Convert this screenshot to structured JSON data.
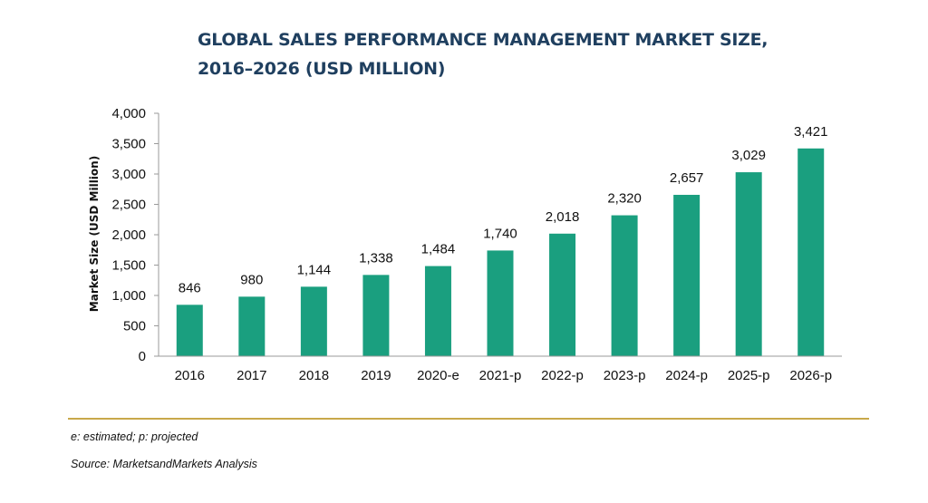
{
  "chart_data": {
    "type": "bar",
    "title_line1": "GLOBAL SALES PERFORMANCE MANAGEMENT MARKET SIZE,",
    "title_line2": "2016–2026 (USD MILLION)",
    "ylabel": "Market Size  (USD Million)",
    "xlabel": "",
    "categories": [
      "2016",
      "2017",
      "2018",
      "2019",
      "2020-e",
      "2021-p",
      "2022-p",
      "2023-p",
      "2024-p",
      "2025-p",
      "2026-p"
    ],
    "values": [
      846,
      980,
      1144,
      1338,
      1484,
      1740,
      2018,
      2320,
      2657,
      3029,
      3421
    ],
    "value_labels": [
      "846",
      "980",
      "1,144",
      "1,338",
      "1,484",
      "1,740",
      "2,018",
      "2,320",
      "2,657",
      "3,029",
      "3,421"
    ],
    "ylim": [
      0,
      4000
    ],
    "yticks": [
      0,
      500,
      1000,
      1500,
      2000,
      2500,
      3000,
      3500,
      4000
    ],
    "ytick_labels": [
      "0",
      "500",
      "1,000",
      "1,500",
      "2,000",
      "2,500",
      "3,000",
      "3,500",
      "4,000"
    ],
    "grid": false,
    "legend": "none",
    "bar_color": "#1a9f7f",
    "title_color": "#1f3f5f",
    "rule_color": "#c8a84a"
  },
  "footnote": "e: estimated; p: projected",
  "source": "Source: MarketsandMarkets Analysis"
}
